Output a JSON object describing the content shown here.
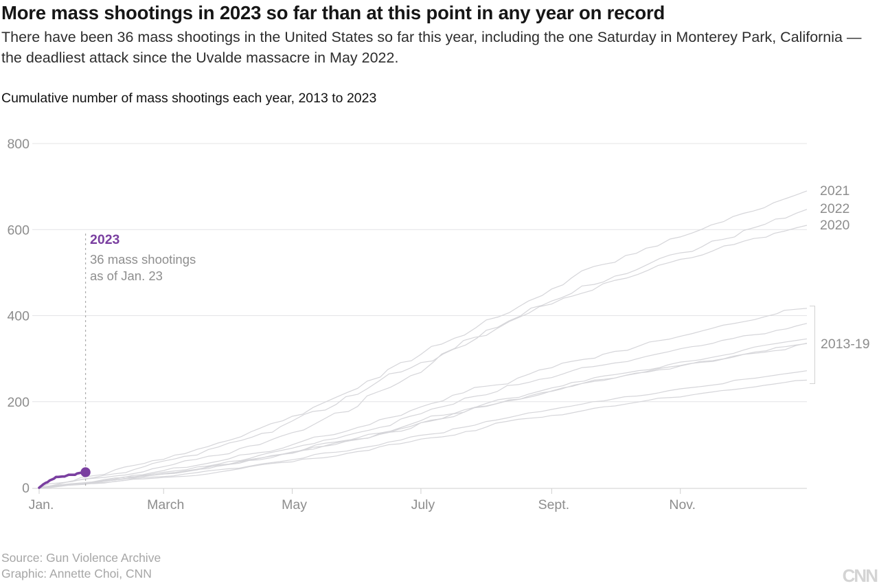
{
  "header": {
    "title": "More mass shootings in 2023 so far than at this point in any year on record",
    "subtitle": "There have been 36 mass shootings in the United States so far this year, including the one Saturday in Monterey Park, California — the deadliest attack since the Uvalde massacre in May 2022."
  },
  "chart": {
    "section_label": "Cumulative number of mass shootings each year, 2013 to 2023"
  },
  "annotation": {
    "year": "2023",
    "line1": "36 mass shootings",
    "line2": "as of Jan. 23"
  },
  "footer": {
    "source_line": "Source: Gun Violence Archive",
    "credit_line": "Graphic: Annette Choi, CNN",
    "logo_text": "CNN"
  },
  "colors": {
    "accent_purple": "#7a3fa0",
    "series_gray": "#d5d5d9",
    "grid": "#e4e4e6",
    "axis": "#cfcfcf",
    "tick_text": "#8d8d8d",
    "dashed_line": "#ababab"
  },
  "chart_data": {
    "type": "line",
    "title": "Cumulative number of mass shootings each year, 2013 to 2023",
    "xlabel": "",
    "ylabel": "",
    "ylim": [
      0,
      800
    ],
    "grid": true,
    "legend_position": "right-edge-labels",
    "y_ticks": [
      0,
      200,
      400,
      600,
      800
    ],
    "x_ticks": [
      {
        "label": "Jan.",
        "day": 0
      },
      {
        "label": "March",
        "day": 59
      },
      {
        "label": "May",
        "day": 120
      },
      {
        "label": "July",
        "day": 181
      },
      {
        "label": "Sept.",
        "day": 243
      },
      {
        "label": "Nov.",
        "day": 304
      }
    ],
    "month_anchor_days": [
      0,
      31,
      59,
      90,
      120,
      151,
      181,
      212,
      243,
      273,
      304,
      334,
      364
    ],
    "series": [
      {
        "name": "2013",
        "year_end_total": 250,
        "monthly_cumulative": [
          0,
          11,
          24,
          40,
          60,
          84,
          113,
          141,
          168,
          190,
          211,
          231,
          250
        ]
      },
      {
        "name": "2014",
        "year_end_total": 272,
        "monthly_cumulative": [
          0,
          12,
          26,
          44,
          65,
          91,
          122,
          154,
          182,
          207,
          230,
          252,
          272
        ]
      },
      {
        "name": "2015",
        "year_end_total": 335,
        "monthly_cumulative": [
          0,
          15,
          32,
          54,
          80,
          112,
          151,
          189,
          224,
          255,
          283,
          310,
          335
        ]
      },
      {
        "name": "2016",
        "year_end_total": 382,
        "monthly_cumulative": [
          0,
          17,
          36,
          61,
          92,
          128,
          172,
          216,
          256,
          290,
          323,
          353,
          382
        ]
      },
      {
        "name": "2017",
        "year_end_total": 346,
        "monthly_cumulative": [
          0,
          16,
          33,
          55,
          83,
          116,
          156,
          196,
          232,
          263,
          292,
          320,
          346
        ]
      },
      {
        "name": "2018",
        "year_end_total": 336,
        "monthly_cumulative": [
          0,
          15,
          32,
          54,
          81,
          113,
          151,
          190,
          225,
          255,
          284,
          310,
          336
        ]
      },
      {
        "name": "2019",
        "year_end_total": 417,
        "monthly_cumulative": [
          0,
          19,
          40,
          67,
          100,
          140,
          188,
          236,
          279,
          317,
          352,
          386,
          417
        ]
      },
      {
        "name": "2020",
        "year_end_total": 610,
        "monthly_cumulative": [
          0,
          24,
          49,
          79,
          128,
          189,
          268,
          354,
          427,
          482,
          531,
          573,
          610
        ]
      },
      {
        "name": "2021",
        "year_end_total": 690,
        "monthly_cumulative": [
          0,
          31,
          66,
          110,
          166,
          231,
          310,
          390,
          462,
          524,
          583,
          638,
          690
        ]
      },
      {
        "name": "2022",
        "year_end_total": 647,
        "monthly_cumulative": [
          0,
          29,
          62,
          104,
          155,
          217,
          291,
          366,
          434,
          492,
          546,
          598,
          647
        ]
      }
    ],
    "highlight_series": {
      "name": "2023",
      "end_value": 36,
      "end_date_label": "Jan. 23",
      "points_day_value": [
        [
          0,
          0
        ],
        [
          1,
          4
        ],
        [
          2,
          8
        ],
        [
          3,
          11
        ],
        [
          4,
          13
        ],
        [
          5,
          17
        ],
        [
          6,
          19
        ],
        [
          7,
          21
        ],
        [
          8,
          25
        ],
        [
          9,
          25
        ],
        [
          11,
          26
        ],
        [
          12,
          26
        ],
        [
          13,
          28
        ],
        [
          14,
          30
        ],
        [
          16,
          30
        ],
        [
          17,
          30
        ],
        [
          18,
          33
        ],
        [
          19,
          34
        ],
        [
          20,
          35
        ],
        [
          22,
          36
        ]
      ]
    },
    "right_labels": [
      {
        "text": "2021",
        "value": 690
      },
      {
        "text": "2022",
        "value": 647
      },
      {
        "text": "2020",
        "value": 610
      }
    ],
    "group_label": {
      "text": "2013-19",
      "min_value": 250,
      "max_value": 417
    }
  }
}
